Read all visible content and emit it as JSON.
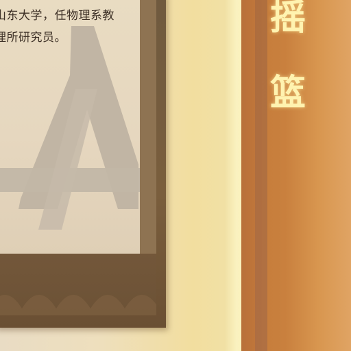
{
  "poster": {
    "line_1": "山东大学，任物理系教",
    "line_2": "理所研究员。"
  },
  "sign": {
    "char_1": "摇",
    "char_2": "篮"
  },
  "colors": {
    "pillar": "#c9803e",
    "sign_text": "#fff3b0",
    "poster_frame": "#6f5a3f",
    "poster_paper": "#e6d7bf",
    "wall_glow": "#f2de9f"
  }
}
